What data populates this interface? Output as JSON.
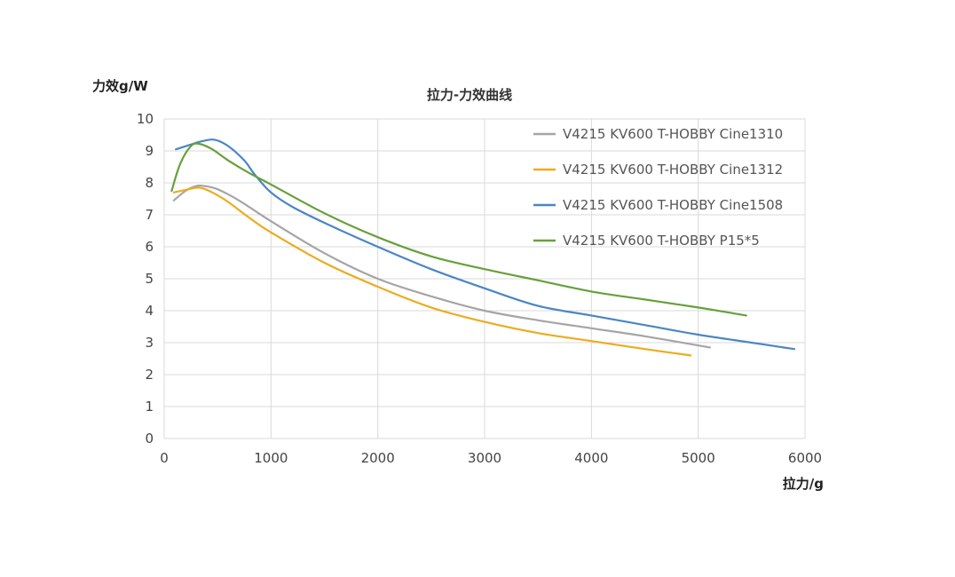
{
  "chart_data": {
    "type": "line",
    "title": "拉力-力效曲线",
    "ylabel": "力效g/W",
    "xlabel": "拉力/g",
    "xlim": [
      0,
      6000
    ],
    "ylim": [
      0,
      10
    ],
    "x_ticks": [
      "0",
      "1000",
      "2000",
      "3000",
      "4000",
      "5000",
      "6000"
    ],
    "y_ticks": [
      "0",
      "1",
      "2",
      "3",
      "4",
      "5",
      "6",
      "7",
      "8",
      "9",
      "10"
    ],
    "grid": true,
    "legend_position": "top-right",
    "series": [
      {
        "name": "V4215 KV600 T-HOBBY Cine1310",
        "color": "#A5A5A5",
        "x": [
          90,
          200,
          300,
          380,
          500,
          700,
          1000,
          1500,
          2000,
          2500,
          3000,
          3500,
          4000,
          4500,
          5110
        ],
        "y": [
          7.45,
          7.75,
          7.9,
          7.9,
          7.8,
          7.45,
          6.8,
          5.8,
          5.0,
          4.45,
          4.0,
          3.7,
          3.45,
          3.2,
          2.85
        ]
      },
      {
        "name": "V4215 KV600 T-HOBBY Cine1312",
        "color": "#EDAB1E",
        "x": [
          90,
          200,
          330,
          450,
          600,
          800,
          1000,
          1500,
          2000,
          2500,
          3000,
          3500,
          4000,
          4500,
          4930
        ],
        "y": [
          7.7,
          7.78,
          7.85,
          7.7,
          7.4,
          6.9,
          6.45,
          5.5,
          4.75,
          4.1,
          3.65,
          3.3,
          3.05,
          2.8,
          2.6
        ]
      },
      {
        "name": "V4215 KV600 T-HOBBY Cine1508",
        "color": "#4A86C5",
        "x": [
          110,
          250,
          350,
          470,
          600,
          750,
          850,
          1000,
          1200,
          1500,
          2000,
          2500,
          3000,
          3500,
          4000,
          4500,
          5000,
          5500,
          5900
        ],
        "y": [
          9.05,
          9.2,
          9.3,
          9.35,
          9.15,
          8.7,
          8.25,
          7.7,
          7.25,
          6.75,
          6.0,
          5.3,
          4.7,
          4.15,
          3.85,
          3.55,
          3.25,
          3.0,
          2.8
        ]
      },
      {
        "name": "V4215 KV600 T-HOBBY P15*5",
        "color": "#67A03A",
        "x": [
          70,
          150,
          250,
          330,
          450,
          600,
          800,
          1000,
          1500,
          2000,
          2500,
          3000,
          3500,
          4000,
          4500,
          5000,
          5450
        ],
        "y": [
          7.75,
          8.6,
          9.15,
          9.22,
          9.05,
          8.7,
          8.3,
          7.95,
          7.05,
          6.3,
          5.7,
          5.3,
          4.95,
          4.6,
          4.35,
          4.1,
          3.85
        ]
      }
    ]
  }
}
